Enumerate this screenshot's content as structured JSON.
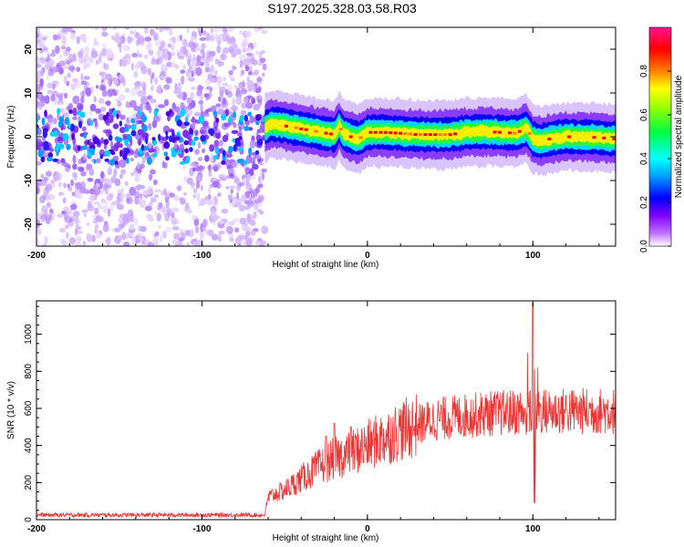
{
  "title": "S197.2025.328.03.58.R03",
  "chart_data": [
    {
      "type": "heatmap",
      "name": "doppler-spectrogram",
      "xlabel": "Height of straight line (km)",
      "ylabel": "Frequency (Hz)",
      "xlim": [
        -200,
        150
      ],
      "ylim": [
        -25,
        25
      ],
      "xticks": [
        -200,
        -100,
        0,
        100
      ],
      "yticks": [
        -20,
        -10,
        0,
        10,
        20
      ],
      "colorbar": {
        "label": "Normalized spectral amplitude",
        "range": [
          0,
          1
        ],
        "ticks": [
          "0.0",
          "0.2",
          "0.4",
          "0.6",
          "0.8"
        ],
        "colors": [
          "#ffffff",
          "#8000ff",
          "#0000ff",
          "#00ffff",
          "#00ff00",
          "#ffff00",
          "#ff8000",
          "#ff0000",
          "#ff1493"
        ]
      },
      "noise_region_end_km": -62,
      "signal_track": {
        "height_km": [
          -62,
          -58,
          -50,
          -45,
          -40,
          -35,
          -28,
          -20,
          -17,
          -15,
          -10,
          -5,
          0,
          10,
          20,
          30,
          40,
          50,
          60,
          70,
          80,
          90,
          96,
          100,
          105,
          110,
          120,
          130,
          140,
          150
        ],
        "frequency_hz": [
          2.0,
          3.0,
          2.5,
          2.2,
          1.8,
          1.5,
          1.0,
          0.5,
          2.5,
          1.0,
          0.0,
          -0.5,
          1.0,
          1.0,
          0.8,
          0.5,
          0.5,
          0.5,
          1.0,
          1.2,
          1.0,
          0.8,
          2.0,
          -0.5,
          -1.0,
          -0.5,
          0.0,
          0.0,
          -0.2,
          -0.5
        ]
      }
    },
    {
      "type": "line",
      "name": "snr-trace",
      "xlabel": "Height of straight line (km)",
      "ylabel": "SNR (10 * v/v)",
      "xlim": [
        -200,
        150
      ],
      "ylim": [
        0,
        1180
      ],
      "xticks": [
        -200,
        -100,
        0,
        100
      ],
      "yticks": [
        0,
        200,
        400,
        600,
        800,
        1000
      ],
      "color": "#ee3333",
      "series_envelope": {
        "x": [
          -200,
          -62,
          -60,
          -50,
          -40,
          -30,
          -20,
          -10,
          0,
          10,
          20,
          30,
          40,
          50,
          60,
          70,
          80,
          90,
          100,
          110,
          120,
          130,
          140,
          150
        ],
        "y": [
          25,
          25,
          120,
          160,
          220,
          280,
          330,
          360,
          400,
          440,
          480,
          510,
          540,
          550,
          560,
          570,
          575,
          580,
          580,
          585,
          585,
          585,
          585,
          585
        ]
      },
      "spikes": [
        {
          "x": -25,
          "y": 450
        },
        {
          "x": -20,
          "y": 520
        },
        {
          "x": -10,
          "y": 500
        },
        {
          "x": 100,
          "y": 1170
        },
        {
          "x": 101,
          "y": 90
        }
      ]
    }
  ]
}
